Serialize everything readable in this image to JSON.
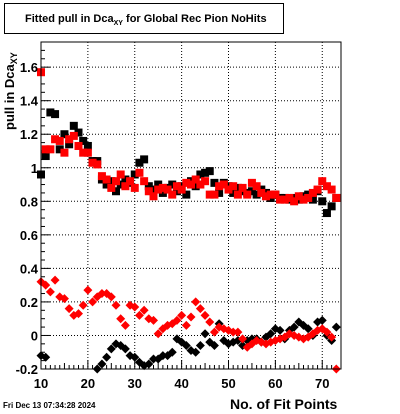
{
  "title": {
    "main": "Fitted pull in Dca",
    "sub": "XY",
    "suffix": " for Global Rec Pion NoHits"
  },
  "ylabel": {
    "main": "pull in Dca",
    "sub": "XY"
  },
  "xlabel": "No. of Fit Points",
  "datestamp": "Fri Dec 13 07:34:28 2024",
  "chart_data": {
    "type": "scatter",
    "xlim": [
      10,
      74
    ],
    "ylim": [
      -0.2,
      1.75
    ],
    "grid": true,
    "xticks": [
      10,
      20,
      30,
      40,
      50,
      60,
      70
    ],
    "yticks": [
      -0.2,
      0,
      0.2,
      0.4,
      0.6,
      0.8,
      1,
      1.2,
      1.4,
      1.6
    ],
    "ytick_labels": [
      "-0.2",
      "0",
      "0.2",
      "0.4",
      "0.6",
      "0.8",
      "1",
      "1.2",
      "1.4",
      "1.6"
    ],
    "series": [
      {
        "color": "#000000",
        "marker": "square",
        "points": [
          [
            10,
            0.96
          ],
          [
            11,
            1.07
          ],
          [
            12,
            1.33
          ],
          [
            13,
            1.32
          ],
          [
            14,
            1.11
          ],
          [
            15,
            1.2
          ],
          [
            16,
            1.14
          ],
          [
            17,
            1.25
          ],
          [
            18,
            1.21
          ],
          [
            19,
            1.16
          ],
          [
            20,
            1.13
          ],
          [
            21,
            1.04
          ],
          [
            22,
            1.04
          ],
          [
            23,
            0.93
          ],
          [
            24,
            0.9
          ],
          [
            25,
            0.92
          ],
          [
            26,
            0.86
          ],
          [
            27,
            0.9
          ],
          [
            28,
            0.93
          ],
          [
            29,
            0.91
          ],
          [
            30,
            0.96
          ],
          [
            31,
            1.03
          ],
          [
            32,
            1.05
          ],
          [
            33,
            0.89
          ],
          [
            34,
            0.87
          ],
          [
            35,
            0.9
          ],
          [
            36,
            0.85
          ],
          [
            37,
            0.88
          ],
          [
            38,
            0.9
          ],
          [
            39,
            0.86
          ],
          [
            40,
            0.89
          ],
          [
            41,
            0.84
          ],
          [
            42,
            0.92
          ],
          [
            43,
            0.89
          ],
          [
            44,
            0.96
          ],
          [
            45,
            0.97
          ],
          [
            46,
            0.98
          ],
          [
            47,
            0.91
          ],
          [
            48,
            0.85
          ],
          [
            49,
            0.91
          ],
          [
            50,
            0.89
          ],
          [
            51,
            0.85
          ],
          [
            52,
            0.88
          ],
          [
            53,
            0.86
          ],
          [
            54,
            0.85
          ],
          [
            55,
            0.86
          ],
          [
            56,
            0.84
          ],
          [
            57,
            0.87
          ],
          [
            58,
            0.85
          ],
          [
            59,
            0.82
          ],
          [
            60,
            0.84
          ],
          [
            61,
            0.82
          ],
          [
            62,
            0.82
          ],
          [
            63,
            0.81
          ],
          [
            64,
            0.82
          ],
          [
            65,
            0.81
          ],
          [
            66,
            0.83
          ],
          [
            67,
            0.84
          ],
          [
            68,
            0.81
          ],
          [
            69,
            0.86
          ],
          [
            70,
            0.8
          ],
          [
            71,
            0.73
          ],
          [
            72,
            0.77
          ],
          [
            73,
            0.82
          ]
        ]
      },
      {
        "color": "#ff0000",
        "marker": "square",
        "points": [
          [
            10,
            1.57
          ],
          [
            11,
            1.11
          ],
          [
            12,
            1.11
          ],
          [
            13,
            1.17
          ],
          [
            14,
            1.16
          ],
          [
            15,
            1.09
          ],
          [
            16,
            1.17
          ],
          [
            17,
            1.19
          ],
          [
            18,
            1.13
          ],
          [
            19,
            1.09
          ],
          [
            20,
            1.09
          ],
          [
            21,
            1.03
          ],
          [
            22,
            1.02
          ],
          [
            23,
            0.95
          ],
          [
            24,
            0.93
          ],
          [
            25,
            0.88
          ],
          [
            26,
            0.92
          ],
          [
            27,
            0.96
          ],
          [
            28,
            0.89
          ],
          [
            29,
            0.92
          ],
          [
            30,
            0.88
          ],
          [
            31,
            0.97
          ],
          [
            32,
            0.92
          ],
          [
            33,
            0.86
          ],
          [
            34,
            0.83
          ],
          [
            35,
            0.87
          ],
          [
            36,
            0.88
          ],
          [
            37,
            0.87
          ],
          [
            38,
            0.84
          ],
          [
            39,
            0.89
          ],
          [
            40,
            0.87
          ],
          [
            41,
            0.91
          ],
          [
            42,
            0.9
          ],
          [
            43,
            0.93
          ],
          [
            44,
            0.9
          ],
          [
            45,
            0.92
          ],
          [
            46,
            0.84
          ],
          [
            47,
            0.84
          ],
          [
            48,
            0.89
          ],
          [
            49,
            0.9
          ],
          [
            50,
            0.87
          ],
          [
            51,
            0.89
          ],
          [
            52,
            0.84
          ],
          [
            53,
            0.88
          ],
          [
            54,
            0.84
          ],
          [
            55,
            0.91
          ],
          [
            56,
            0.89
          ],
          [
            57,
            0.85
          ],
          [
            58,
            0.83
          ],
          [
            59,
            0.84
          ],
          [
            60,
            0.84
          ],
          [
            61,
            0.81
          ],
          [
            62,
            0.81
          ],
          [
            63,
            0.82
          ],
          [
            64,
            0.8
          ],
          [
            65,
            0.83
          ],
          [
            66,
            0.81
          ],
          [
            67,
            0.82
          ],
          [
            68,
            0.85
          ],
          [
            69,
            0.87
          ],
          [
            70,
            0.92
          ],
          [
            71,
            0.89
          ],
          [
            72,
            0.87
          ],
          [
            73,
            0.82
          ]
        ]
      },
      {
        "color": "#000000",
        "marker": "diamond",
        "points": [
          [
            10,
            -0.12
          ],
          [
            11,
            -0.13
          ],
          [
            22,
            -0.2
          ],
          [
            23,
            -0.17
          ],
          [
            24,
            -0.13
          ],
          [
            25,
            -0.08
          ],
          [
            26,
            -0.05
          ],
          [
            27,
            -0.06
          ],
          [
            28,
            -0.08
          ],
          [
            29,
            -0.12
          ],
          [
            30,
            -0.13
          ],
          [
            31,
            -0.16
          ],
          [
            32,
            -0.18
          ],
          [
            33,
            -0.17
          ],
          [
            34,
            -0.14
          ],
          [
            35,
            -0.14
          ],
          [
            36,
            -0.12
          ],
          [
            37,
            -0.12
          ],
          [
            38,
            -0.1
          ],
          [
            39,
            -0.02
          ],
          [
            40,
            -0.04
          ],
          [
            41,
            -0.06
          ],
          [
            42,
            -0.09
          ],
          [
            43,
            -0.1
          ],
          [
            44,
            -0.06
          ],
          [
            45,
            0.01
          ],
          [
            46,
            -0.04
          ],
          [
            47,
            -0.06
          ],
          [
            48,
            0.07
          ],
          [
            49,
            -0.03
          ],
          [
            50,
            -0.05
          ],
          [
            51,
            -0.04
          ],
          [
            52,
            -0.03
          ],
          [
            53,
            -0.06
          ],
          [
            54,
            -0.03
          ],
          [
            55,
            -0.02
          ],
          [
            56,
            -0.02
          ],
          [
            57,
            -0.04
          ],
          [
            58,
            -0.01
          ],
          [
            59,
            0.01
          ],
          [
            60,
            0.04
          ],
          [
            61,
            0.03
          ],
          [
            62,
            -0.02
          ],
          [
            63,
            0.03
          ],
          [
            64,
            0.05
          ],
          [
            65,
            0.08
          ],
          [
            66,
            0.06
          ],
          [
            67,
            0.04
          ],
          [
            68,
            0.0
          ],
          [
            69,
            0.08
          ],
          [
            70,
            0.09
          ],
          [
            71,
            0.0
          ],
          [
            72,
            -0.03
          ],
          [
            73,
            0.05
          ]
        ]
      },
      {
        "color": "#ff0000",
        "marker": "diamond",
        "points": [
          [
            10,
            0.32
          ],
          [
            11,
            0.3
          ],
          [
            12,
            0.26
          ],
          [
            13,
            0.33
          ],
          [
            14,
            0.23
          ],
          [
            15,
            0.22
          ],
          [
            16,
            0.16
          ],
          [
            17,
            0.12
          ],
          [
            18,
            0.13
          ],
          [
            19,
            0.18
          ],
          [
            20,
            0.27
          ],
          [
            21,
            0.2
          ],
          [
            22,
            0.23
          ],
          [
            23,
            0.25
          ],
          [
            24,
            0.25
          ],
          [
            25,
            0.23
          ],
          [
            26,
            0.18
          ],
          [
            27,
            0.1
          ],
          [
            28,
            0.06
          ],
          [
            29,
            0.18
          ],
          [
            30,
            0.17
          ],
          [
            31,
            0.12
          ],
          [
            32,
            0.15
          ],
          [
            33,
            0.1
          ],
          [
            34,
            0.09
          ],
          [
            35,
            0.01
          ],
          [
            36,
            0.04
          ],
          [
            37,
            0.06
          ],
          [
            38,
            0.07
          ],
          [
            39,
            0.09
          ],
          [
            40,
            0.12
          ],
          [
            41,
            0.06
          ],
          [
            42,
            0.11
          ],
          [
            43,
            0.2
          ],
          [
            44,
            0.16
          ],
          [
            45,
            0.12
          ],
          [
            46,
            0.08
          ],
          [
            47,
            0.02
          ],
          [
            48,
            0.05
          ],
          [
            49,
            0.04
          ],
          [
            50,
            0.03
          ],
          [
            51,
            0.02
          ],
          [
            52,
            0.02
          ],
          [
            53,
            -0.02
          ],
          [
            54,
            -0.07
          ],
          [
            55,
            -0.05
          ],
          [
            56,
            -0.03
          ],
          [
            57,
            -0.04
          ],
          [
            58,
            -0.05
          ],
          [
            59,
            -0.04
          ],
          [
            60,
            -0.03
          ],
          [
            61,
            -0.02
          ],
          [
            62,
            -0.01
          ],
          [
            63,
            0.01
          ],
          [
            64,
            0.0
          ],
          [
            65,
            -0.01
          ],
          [
            66,
            -0.02
          ],
          [
            67,
            -0.01
          ],
          [
            68,
            0.01
          ],
          [
            69,
            0.03
          ],
          [
            70,
            0.04
          ],
          [
            71,
            0.02
          ],
          [
            72,
            -0.01
          ],
          [
            73,
            -0.2
          ]
        ]
      }
    ]
  }
}
